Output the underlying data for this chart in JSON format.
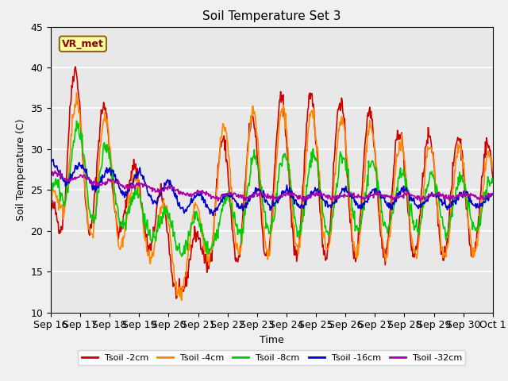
{
  "title": "Soil Temperature Set 3",
  "xlabel": "Time",
  "ylabel": "Soil Temperature (C)",
  "ylim": [
    10,
    45
  ],
  "xlim": [
    0,
    15
  ],
  "plot_bg_color": "#e8e8e8",
  "fig_bg_color": "#f0f0f0",
  "grid_color": "white",
  "series": [
    {
      "label": "Tsoil -2cm",
      "color": "#cc0000"
    },
    {
      "label": "Tsoil -4cm",
      "color": "#ff8800"
    },
    {
      "label": "Tsoil -8cm",
      "color": "#00cc00"
    },
    {
      "label": "Tsoil -16cm",
      "color": "#0000cc"
    },
    {
      "label": "Tsoil -32cm",
      "color": "#aa00aa"
    }
  ],
  "xtick_labels": [
    "Sep 16",
    "Sep 17",
    "Sep 18",
    "Sep 19",
    "Sep 20",
    "Sep 21",
    "Sep 22",
    "Sep 23",
    "Sep 24",
    "Sep 25",
    "Sep 26",
    "Sep 27",
    "Sep 28",
    "Sep 29",
    "Sep 30",
    "Oct 1"
  ],
  "annotation_text": "VR_met",
  "annotation_color": "#8b0000",
  "annotation_bg": "#ffffa0",
  "annotation_border": "#8b6914"
}
